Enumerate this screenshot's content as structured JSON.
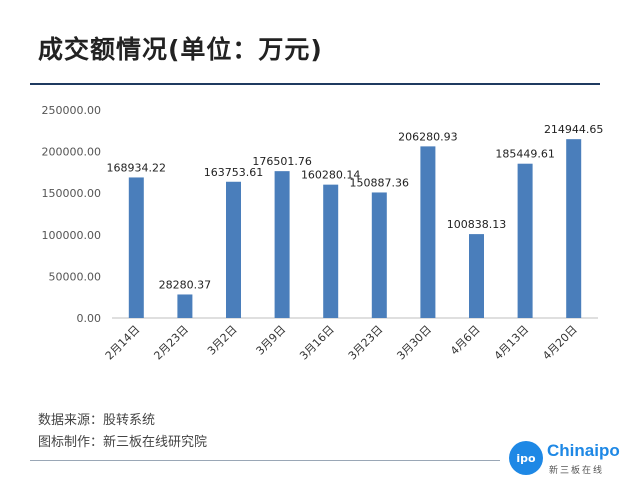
{
  "header": {
    "title": "成交额情况(单位：万元)"
  },
  "footer": {
    "source": "数据来源：股转系统",
    "made_by": "图标制作：新三板在线研究院"
  },
  "logo": {
    "circle_text": "ipo",
    "name": "Chinaipo",
    "sub": "新三板在线"
  },
  "colors": {
    "bar": "#4a7ebb",
    "title_rule": "#1f3a60"
  },
  "chart_data": {
    "type": "bar",
    "title": "成交额情况(单位：万元)",
    "categories": [
      "2月14日",
      "2月23日",
      "3月2日",
      "3月9日",
      "3月16日",
      "3月23日",
      "3月30日",
      "4月6日",
      "4月13日",
      "4月20日"
    ],
    "values": [
      168934.22,
      28280.37,
      163753.61,
      176501.76,
      160280.14,
      150887.36,
      206280.93,
      100838.13,
      185449.61,
      214944.65
    ],
    "value_labels": [
      "168934.22",
      "28280.37",
      "163753.61",
      "176501.76",
      "160280.14",
      "150887.36",
      "206280.93",
      "100838.13",
      "185449.61",
      "214944.65"
    ],
    "ylim": [
      0,
      250000
    ],
    "yticks": [
      "0.00",
      "50000.00",
      "100000.00",
      "150000.00",
      "200000.00",
      "250000.00"
    ],
    "grid": false,
    "legend": "none"
  }
}
